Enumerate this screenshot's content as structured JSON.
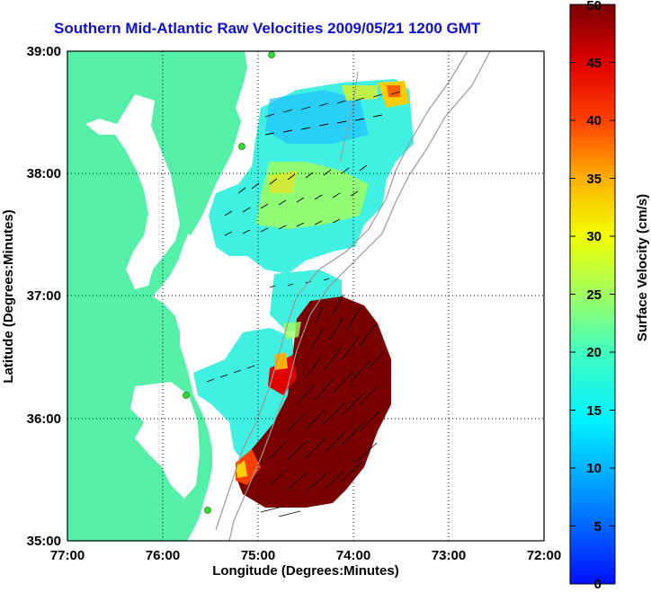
{
  "figure": {
    "title": "Southern Mid-Atlantic Raw Velocities 2009/05/21 1200 GMT",
    "xlabel": "Longitude (Degrees:Minutes)",
    "ylabel": "Latitude (Degrees:Minutes)",
    "colorbar_label": "Surface Velocity (cm/s)"
  },
  "map": {
    "x_ticks": [
      "77:00",
      "76:00",
      "75:00",
      "74:00",
      "73:00",
      "72:00"
    ],
    "y_ticks": [
      "39:00",
      "38:00",
      "37:00",
      "36:00",
      "35:00"
    ],
    "x_range_deg_west": [
      77,
      72
    ],
    "y_range_deg_north": [
      35,
      39
    ],
    "grid": "dotted",
    "colorbar_ticks": [
      "50",
      "45",
      "40",
      "35",
      "30",
      "25",
      "20",
      "15",
      "10",
      "5",
      "0"
    ],
    "colorbar_range": [
      0,
      50
    ],
    "colormap": "jet",
    "land_color": "#55f0a8",
    "radar_site_color": "#30e030"
  }
}
